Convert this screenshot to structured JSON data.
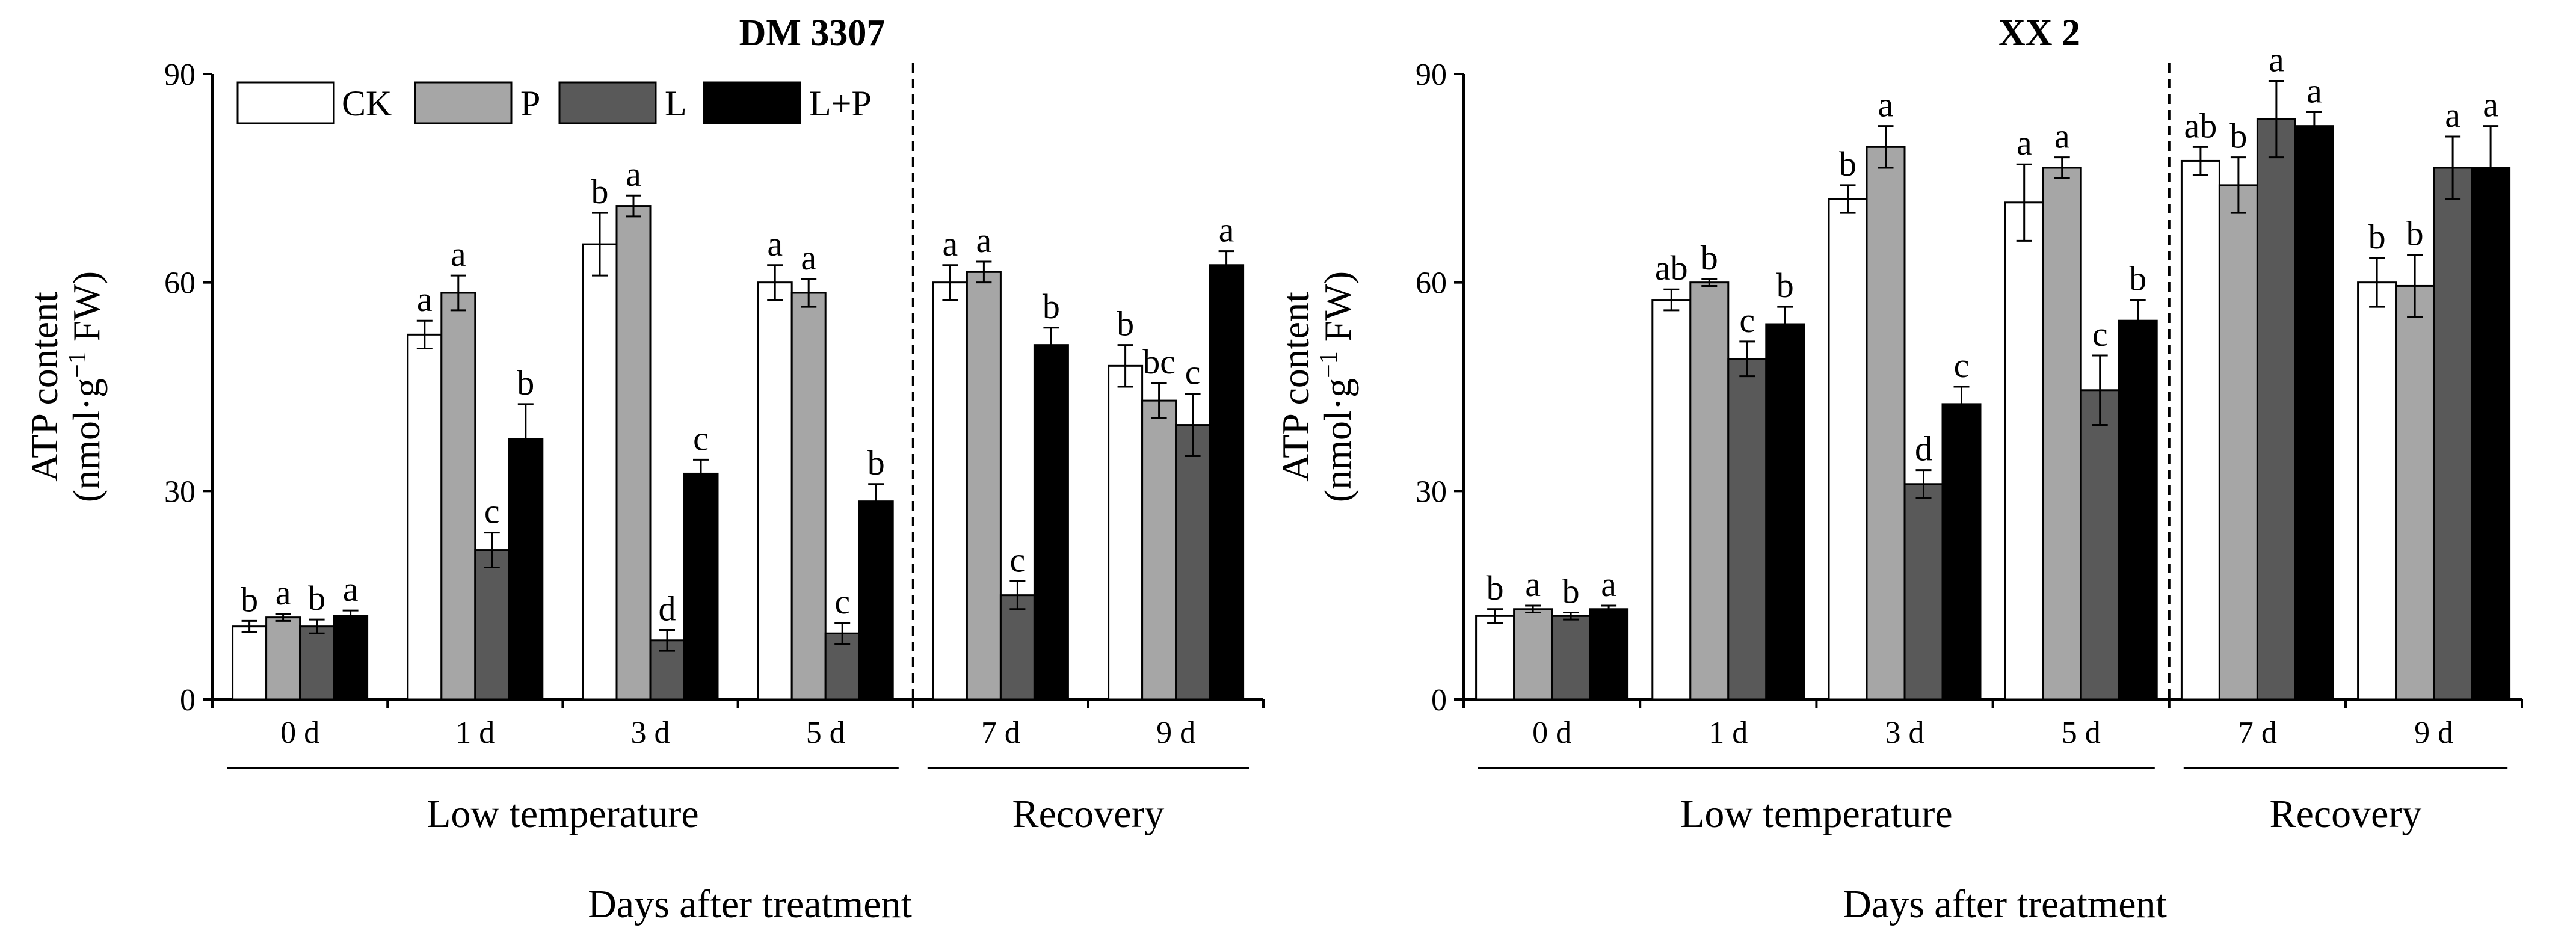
{
  "chart_data": [
    {
      "type": "bar",
      "title": "DM 3307",
      "ylabel_line1": "ATP content",
      "ylabel_line2_prefix": "(nmol·g",
      "ylabel_line2_sup": "−1",
      "ylabel_line2_suffix": " FW)",
      "xlabel": "Days after treatment",
      "ylim": [
        0,
        90
      ],
      "yticks": [
        "0",
        "30",
        "60",
        "90"
      ],
      "categories": [
        "0 d",
        "1 d",
        "3 d",
        "5 d",
        "7 d",
        "9 d"
      ],
      "groups": [
        {
          "label": "Low temperature",
          "from": 0,
          "to": 3
        },
        {
          "label": "Recovery",
          "from": 4,
          "to": 5
        }
      ],
      "divider_after_category": 3,
      "legend": [
        "CK",
        "P",
        "L",
        "L+P"
      ],
      "colors": [
        "#ffffff",
        "#a6a6a6",
        "#595959",
        "#000000"
      ],
      "series": [
        {
          "name": "CK",
          "values": [
            10.5,
            52.5,
            65.5,
            60.0,
            60.0,
            48.0
          ],
          "errors": [
            0.8,
            2.0,
            4.5,
            2.5,
            2.5,
            3.0
          ],
          "labels": [
            "b",
            "a",
            "b",
            "a",
            "a",
            "b"
          ]
        },
        {
          "name": "P",
          "values": [
            11.8,
            58.5,
            71.0,
            58.5,
            61.5,
            43.0
          ],
          "errors": [
            0.5,
            2.5,
            1.5,
            2.0,
            1.5,
            2.5
          ],
          "labels": [
            "a",
            "a",
            "a",
            "a",
            "a",
            "bc"
          ]
        },
        {
          "name": "L",
          "values": [
            10.5,
            21.5,
            8.5,
            9.5,
            15.0,
            39.5
          ],
          "errors": [
            1.0,
            2.5,
            1.5,
            1.5,
            2.0,
            4.5
          ],
          "labels": [
            "b",
            "c",
            "d",
            "c",
            "c",
            "c"
          ]
        },
        {
          "name": "L+P",
          "values": [
            12.0,
            37.5,
            32.5,
            28.5,
            51.0,
            62.5
          ],
          "errors": [
            0.8,
            5.0,
            2.0,
            2.5,
            2.5,
            2.0
          ],
          "labels": [
            "a",
            "b",
            "c",
            "b",
            "b",
            "a"
          ]
        }
      ]
    },
    {
      "type": "bar",
      "title": "XX 2",
      "ylabel_line1": "ATP content",
      "ylabel_line2_prefix": "(nmol·g",
      "ylabel_line2_sup": "−1",
      "ylabel_line2_suffix": " FW)",
      "xlabel": "Days after treatment",
      "ylim": [
        0,
        90
      ],
      "yticks": [
        "0",
        "30",
        "60",
        "90"
      ],
      "categories": [
        "0 d",
        "1 d",
        "3 d",
        "5 d",
        "7 d",
        "9 d"
      ],
      "groups": [
        {
          "label": "Low temperature",
          "from": 0,
          "to": 3
        },
        {
          "label": "Recovery",
          "from": 4,
          "to": 5
        }
      ],
      "divider_after_category": 3,
      "colors": [
        "#ffffff",
        "#a6a6a6",
        "#595959",
        "#000000"
      ],
      "series": [
        {
          "name": "CK",
          "values": [
            12.0,
            57.5,
            72.0,
            71.5,
            77.5,
            60.0
          ],
          "errors": [
            1.0,
            1.5,
            2.0,
            5.5,
            2.0,
            3.5
          ],
          "labels": [
            "b",
            "ab",
            "b",
            "a",
            "ab",
            "b"
          ]
        },
        {
          "name": "P",
          "values": [
            13.0,
            60.0,
            79.5,
            76.5,
            74.0,
            59.5
          ],
          "errors": [
            0.5,
            0.5,
            3.0,
            1.5,
            4.0,
            4.5
          ],
          "labels": [
            "a",
            "b",
            "a",
            "a",
            "b",
            "b"
          ]
        },
        {
          "name": "L",
          "values": [
            12.0,
            49.0,
            31.0,
            44.5,
            83.5,
            76.5
          ],
          "errors": [
            0.5,
            2.5,
            2.0,
            5.0,
            5.5,
            4.5
          ],
          "labels": [
            "b",
            "c",
            "d",
            "c",
            "a",
            "a"
          ]
        },
        {
          "name": "L+P",
          "values": [
            13.0,
            54.0,
            42.5,
            54.5,
            82.5,
            76.5
          ],
          "errors": [
            0.5,
            2.5,
            2.5,
            3.0,
            2.0,
            6.0
          ],
          "labels": [
            "a",
            "b",
            "c",
            "b",
            "a",
            "a"
          ]
        }
      ]
    }
  ]
}
